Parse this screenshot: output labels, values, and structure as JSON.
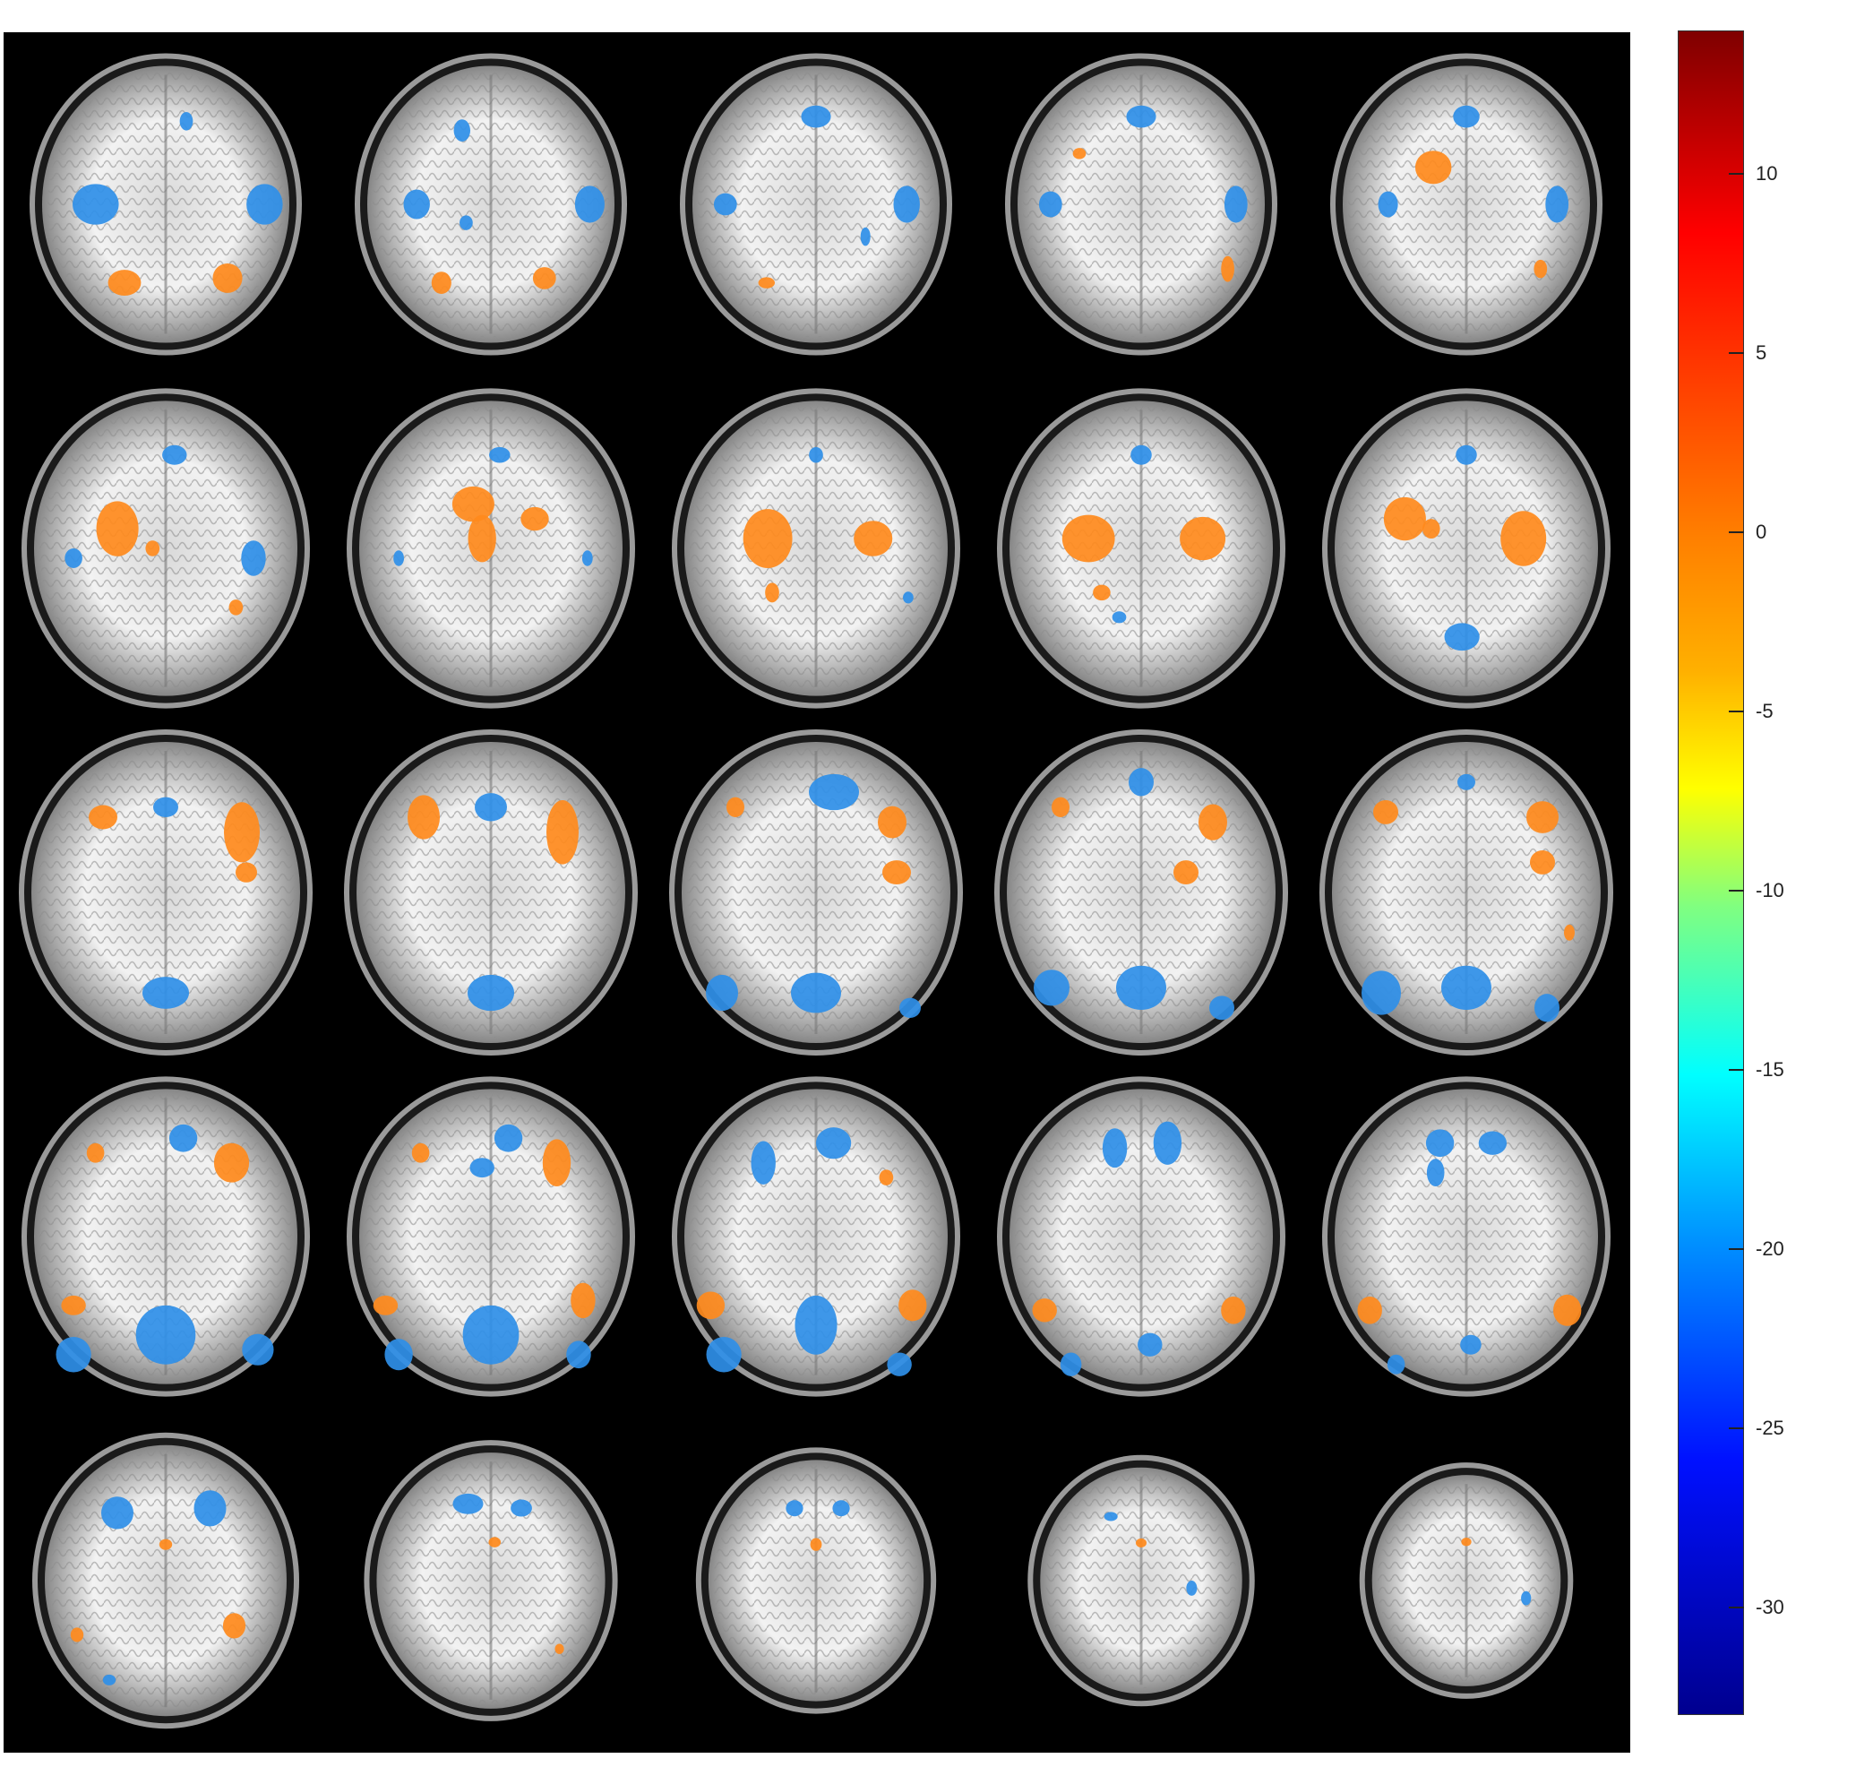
{
  "figure": {
    "grid": {
      "rows": 5,
      "cols": 5
    },
    "view": "axial",
    "background_color": "#000000",
    "activation_colors": {
      "positive": "#ff8a1c",
      "negative": "#2f8fe8"
    }
  },
  "colorbar": {
    "min": -33,
    "max": 14,
    "colormap": "jet",
    "ticks": [
      {
        "value": 10,
        "label": "10"
      },
      {
        "value": 5,
        "label": "5"
      },
      {
        "value": 0,
        "label": "0"
      },
      {
        "value": -5,
        "label": "-5"
      },
      {
        "value": -10,
        "label": "-10"
      },
      {
        "value": -15,
        "label": "-15"
      },
      {
        "value": -20,
        "label": "-20"
      },
      {
        "value": -25,
        "label": "-25"
      },
      {
        "value": -30,
        "label": "-30"
      }
    ]
  }
}
